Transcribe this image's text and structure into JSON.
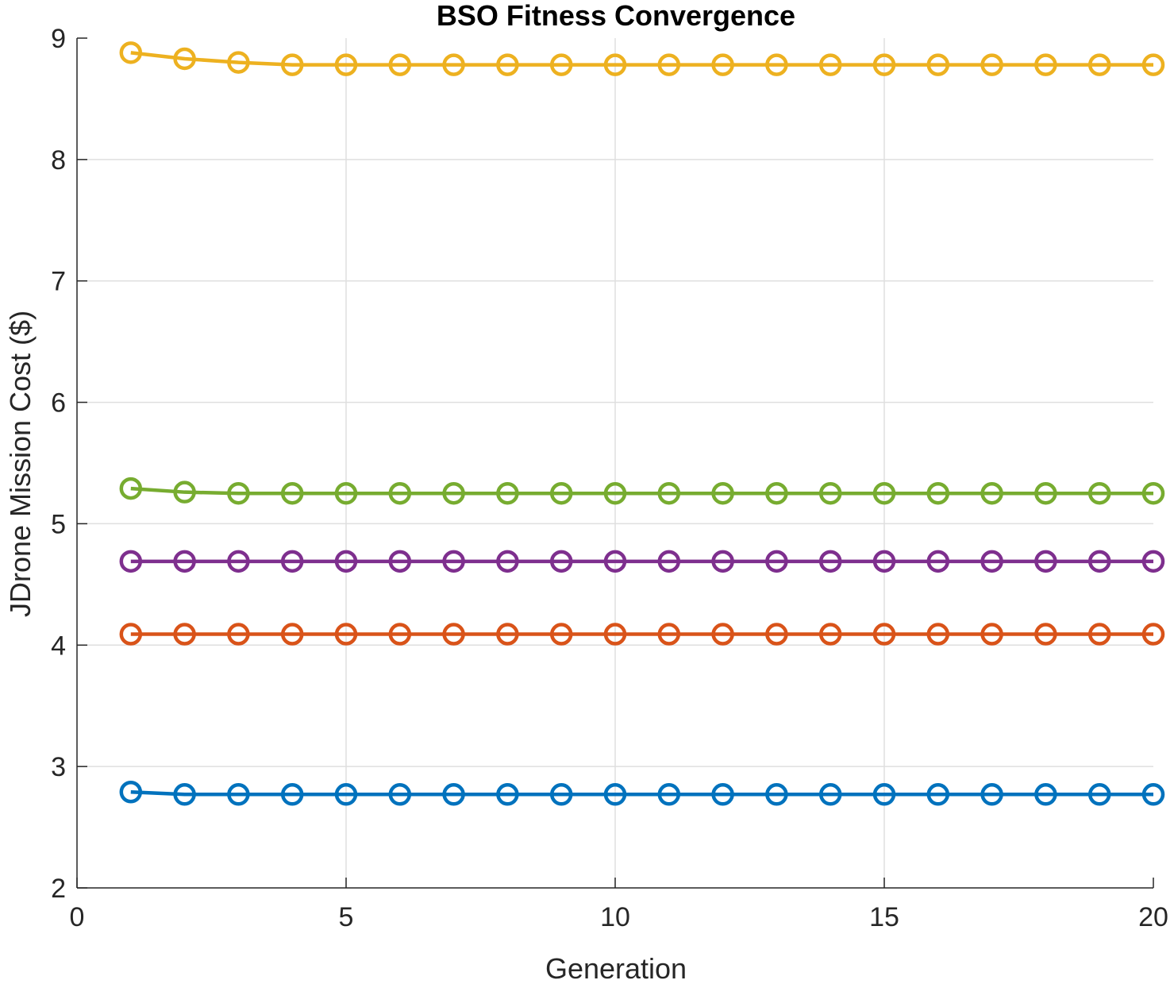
{
  "chart_data": {
    "type": "line",
    "title": "BSO Fitness Convergence",
    "xlabel": "Generation",
    "ylabel": "JDrone Mission Cost ($)",
    "xlim": [
      0,
      20
    ],
    "ylim": [
      2,
      9
    ],
    "xticks": [
      0,
      5,
      10,
      15,
      20
    ],
    "yticks": [
      2,
      3,
      4,
      5,
      6,
      7,
      8,
      9
    ],
    "grid": true,
    "marker": "circle",
    "x": [
      1,
      2,
      3,
      4,
      5,
      6,
      7,
      8,
      9,
      10,
      11,
      12,
      13,
      14,
      15,
      16,
      17,
      18,
      19,
      20
    ],
    "series": [
      {
        "color": "#0072BD",
        "values": [
          2.79,
          2.77,
          2.77,
          2.77,
          2.77,
          2.77,
          2.77,
          2.77,
          2.77,
          2.77,
          2.77,
          2.77,
          2.77,
          2.77,
          2.77,
          2.77,
          2.77,
          2.77,
          2.77,
          2.77
        ]
      },
      {
        "color": "#D95319",
        "values": [
          4.09,
          4.09,
          4.09,
          4.09,
          4.09,
          4.09,
          4.09,
          4.09,
          4.09,
          4.09,
          4.09,
          4.09,
          4.09,
          4.09,
          4.09,
          4.09,
          4.09,
          4.09,
          4.09,
          4.09
        ]
      },
      {
        "color": "#EDB120",
        "values": [
          8.88,
          8.83,
          8.8,
          8.78,
          8.78,
          8.78,
          8.78,
          8.78,
          8.78,
          8.78,
          8.78,
          8.78,
          8.78,
          8.78,
          8.78,
          8.78,
          8.78,
          8.78,
          8.78,
          8.78
        ]
      },
      {
        "color": "#7E2F8E",
        "values": [
          4.69,
          4.69,
          4.69,
          4.69,
          4.69,
          4.69,
          4.69,
          4.69,
          4.69,
          4.69,
          4.69,
          4.69,
          4.69,
          4.69,
          4.69,
          4.69,
          4.69,
          4.69,
          4.69,
          4.69
        ]
      },
      {
        "color": "#77AC30",
        "values": [
          5.29,
          5.26,
          5.25,
          5.25,
          5.25,
          5.25,
          5.25,
          5.25,
          5.25,
          5.25,
          5.25,
          5.25,
          5.25,
          5.25,
          5.25,
          5.25,
          5.25,
          5.25,
          5.25,
          5.25
        ]
      }
    ]
  }
}
